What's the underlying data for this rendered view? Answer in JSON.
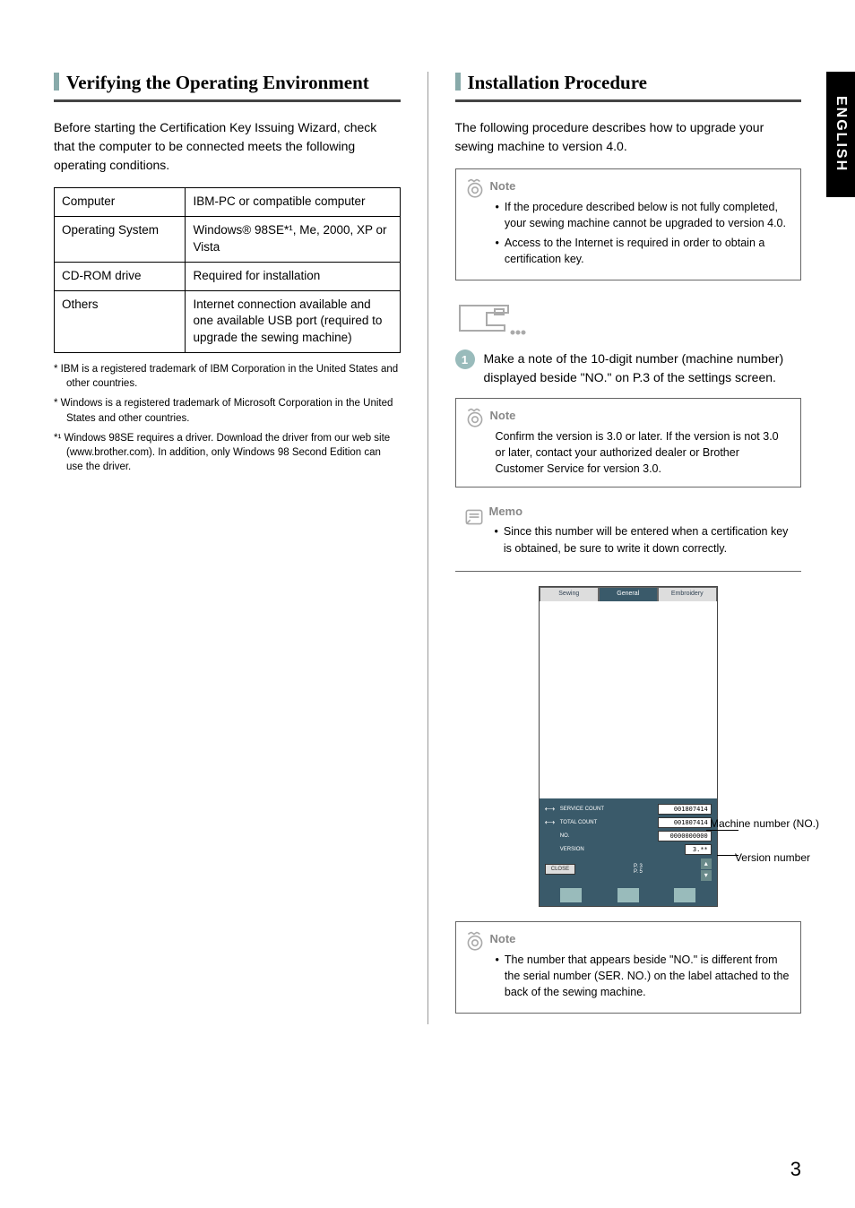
{
  "sideTab": "ENGLISH",
  "pageNumber": "3",
  "left": {
    "title": "Verifying the Operating Environment",
    "intro": "Before starting the Certification Key Issuing Wizard, check that the computer to be connected meets the following operating conditions.",
    "table": {
      "rows": [
        {
          "k": "Computer",
          "v": "IBM-PC or compatible computer"
        },
        {
          "k": "Operating System",
          "v": "Windows® 98SE*¹, Me, 2000, XP or Vista"
        },
        {
          "k": "CD-ROM drive",
          "v": "Required for installation"
        },
        {
          "k": "Others",
          "v": "Internet connection available and\none available USB port (required to upgrade the sewing machine)"
        }
      ]
    },
    "footnotes": [
      "* IBM is a registered trademark of IBM Corporation in the United States and other countries.",
      "* Windows is a registered trademark of Microsoft Corporation in the United States and other countries.",
      "*¹ Windows 98SE requires a driver. Download the driver from our web site (www.brother.com). In addition, only Windows 98 Second Edition can use the driver."
    ]
  },
  "right": {
    "title": "Installation Procedure",
    "intro": "The following procedure describes how to upgrade your sewing machine to version 4.0.",
    "note1": {
      "title": "Note",
      "bullets": [
        "If the procedure described below is not fully completed, your sewing machine cannot be upgraded to version 4.0.",
        "Access to the Internet is required in order to obtain a certification key."
      ]
    },
    "step1": {
      "num": "1",
      "text": "Make a note of the 10-digit number (machine number) displayed beside \"NO.\" on P.3 of the settings screen."
    },
    "note2": {
      "title": "Note",
      "text": "Confirm the version is 3.0 or later.  If the version is not 3.0 or later, contact your authorized dealer or Brother Customer Service for version 3.0."
    },
    "memo": {
      "title": "Memo",
      "bullets": [
        "Since this number will be entered when a certification key is obtained, be sure to write it down correctly."
      ]
    },
    "screenshot": {
      "tabs": [
        "Sewing",
        "General",
        "Embroidery"
      ],
      "activeTab": 1,
      "serviceCountLabel": "SERVICE COUNT",
      "serviceCount": "001807414",
      "totalCountLabel": "TOTAL COUNT",
      "totalCount": "001807414",
      "noLabel": "NO.",
      "noValue": "0000000000",
      "versionLabel": "VERSION",
      "versionValue": "3.**",
      "close": "CLOSE",
      "pager": "P. 3\nP. 5",
      "callout1": "Machine number (NO.)",
      "callout2": "Version number"
    },
    "note3": {
      "title": "Note",
      "bullets": [
        "The number that appears beside \"NO.\" is different from the serial number (SER. NO.) on the label attached to the back of the sewing machine."
      ]
    }
  }
}
